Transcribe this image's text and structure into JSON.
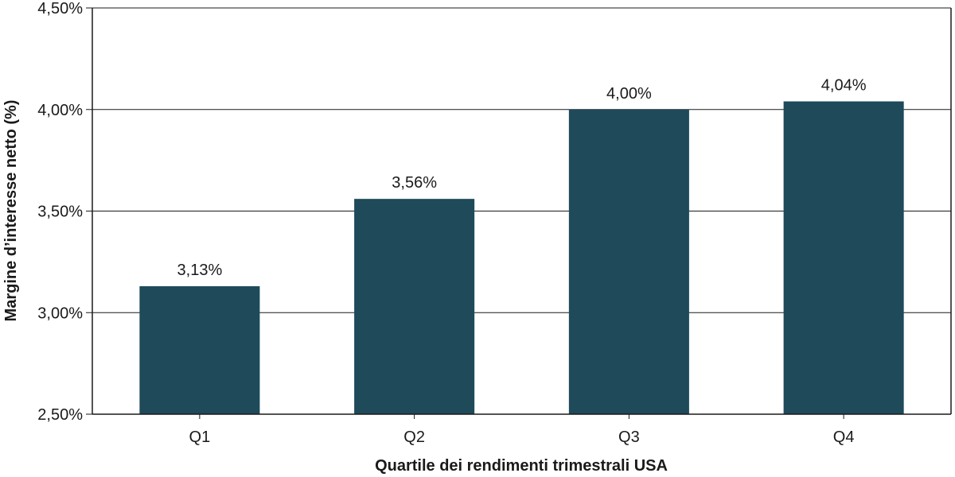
{
  "chart_data": {
    "type": "bar",
    "categories": [
      "Q1",
      "Q2",
      "Q3",
      "Q4"
    ],
    "values": [
      3.13,
      3.56,
      4.0,
      4.04
    ],
    "data_labels": [
      "3,13%",
      "3,56%",
      "4,00%",
      "4,04%"
    ],
    "xlabel": "Quartile dei rendimenti trimestrali USA",
    "ylabel": "Margine d’interesse netto (%)",
    "ylim": [
      2.5,
      4.5
    ],
    "yticks": [
      2.5,
      3.0,
      3.5,
      4.0,
      4.5
    ],
    "ytick_labels": [
      "2,50%",
      "3,00%",
      "3,50%",
      "4,00%",
      "4,50%"
    ],
    "grid": true,
    "legend": "none",
    "bar_color": "#1e4a5a"
  }
}
